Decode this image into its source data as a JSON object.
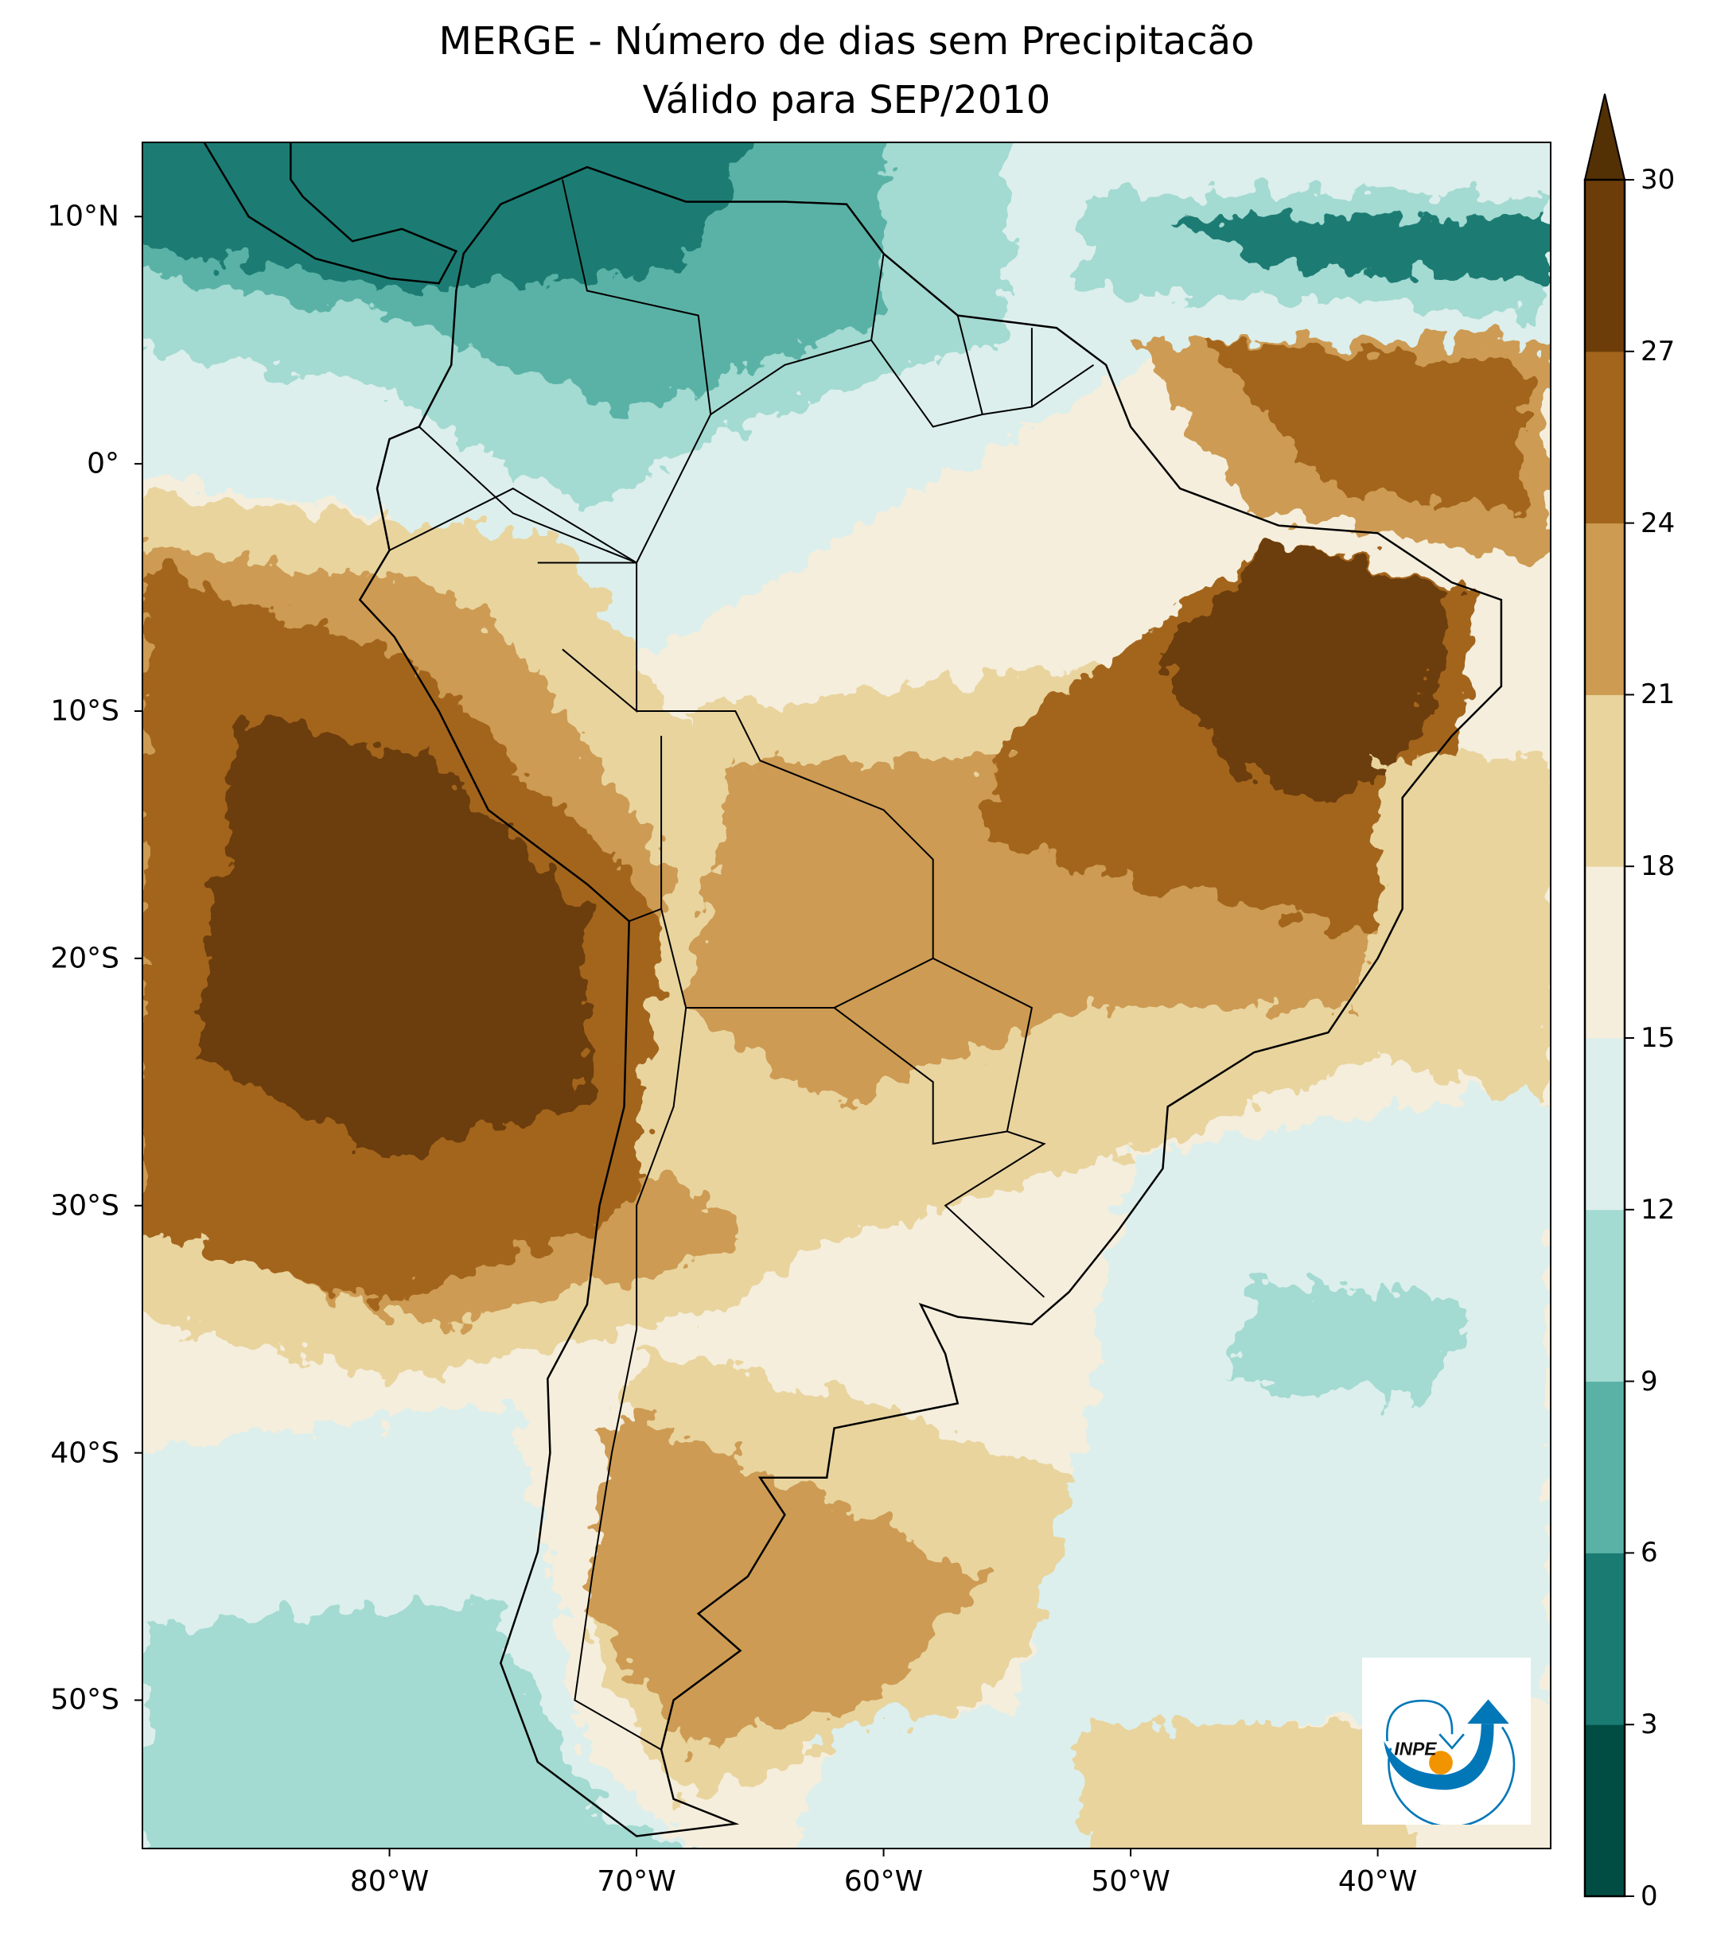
{
  "chart_data": {
    "type": "heatmap",
    "title": "MERGE - Número de dias sem Precipitacão",
    "subtitle": "Válido para SEP/2010",
    "xlabel": "",
    "ylabel": "",
    "x_range": [
      -90,
      -33
    ],
    "y_range": [
      -56,
      13
    ],
    "x_ticks": [
      {
        "value": -80,
        "label": "80°W"
      },
      {
        "value": -70,
        "label": "70°W"
      },
      {
        "value": -60,
        "label": "60°W"
      },
      {
        "value": -50,
        "label": "50°W"
      },
      {
        "value": -40,
        "label": "40°W"
      }
    ],
    "y_ticks": [
      {
        "value": 10,
        "label": "10°N"
      },
      {
        "value": 0,
        "label": "0°"
      },
      {
        "value": -10,
        "label": "10°S"
      },
      {
        "value": -20,
        "label": "20°S"
      },
      {
        "value": -30,
        "label": "30°S"
      },
      {
        "value": -40,
        "label": "40°S"
      },
      {
        "value": -50,
        "label": "50°S"
      }
    ],
    "colorbar": {
      "levels": [
        0,
        3,
        6,
        9,
        12,
        15,
        18,
        21,
        24,
        27,
        30
      ],
      "labels": [
        "0",
        "3",
        "6",
        "9",
        "12",
        "15",
        "18",
        "21",
        "24",
        "27",
        "30"
      ],
      "colors": [
        "#014d43",
        "#1a7b73",
        "#5ab2a6",
        "#a3dad2",
        "#dcefec",
        "#f5eedc",
        "#e9d49e",
        "#cd9b52",
        "#a3651c",
        "#6c3d08"
      ],
      "extend_color": "#543005",
      "extend": "max"
    }
  },
  "logo": {
    "text": "INPE",
    "colors": {
      "blue": "#0277b8",
      "orange": "#f29400"
    }
  }
}
